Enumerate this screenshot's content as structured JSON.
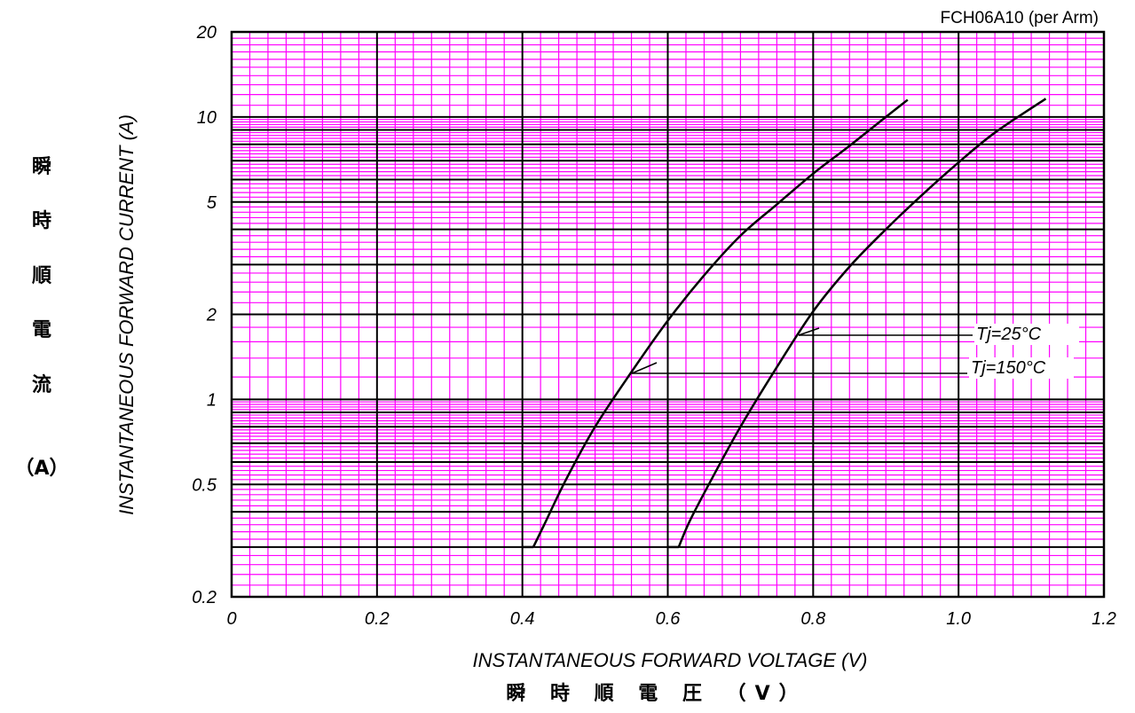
{
  "chart_data": {
    "type": "line",
    "title": "FCH06A10 (per Arm)",
    "xlabel": "INSTANTANEOUS FORWARD VOLTAGE (V)",
    "xlabel_cjk": "瞬 時 順 電 圧 （V）",
    "ylabel": "INSTANTANEOUS FORWARD CURRENT (A)",
    "ylabel_cjk": [
      "瞬",
      "時",
      "順",
      "電",
      "流",
      "（A）"
    ],
    "xlim": [
      0,
      1.2
    ],
    "ylim": [
      0.2,
      20
    ],
    "yscale": "log",
    "grid": true,
    "x_ticks": [
      "0",
      "0.2",
      "0.4",
      "0.6",
      "0.8",
      "1.0",
      "1.2"
    ],
    "y_ticks": [
      "20",
      "10",
      "5",
      "2",
      "1",
      "0.5",
      "0.2"
    ],
    "colors": {
      "minor_grid": "#ff00ff",
      "major_grid": "#000000",
      "curve": "#000000"
    },
    "series": [
      {
        "name": "Tj=150°C",
        "points": [
          [
            0.415,
            0.3
          ],
          [
            0.43,
            0.36
          ],
          [
            0.46,
            0.52
          ],
          [
            0.5,
            0.8
          ],
          [
            0.55,
            1.25
          ],
          [
            0.6,
            1.9
          ],
          [
            0.65,
            2.75
          ],
          [
            0.7,
            3.8
          ],
          [
            0.75,
            4.9
          ],
          [
            0.8,
            6.3
          ],
          [
            0.85,
            7.9
          ],
          [
            0.9,
            10.0
          ],
          [
            0.93,
            11.5
          ]
        ]
      },
      {
        "name": "Tj=25°C",
        "points": [
          [
            0.615,
            0.3
          ],
          [
            0.63,
            0.37
          ],
          [
            0.66,
            0.52
          ],
          [
            0.7,
            0.8
          ],
          [
            0.75,
            1.3
          ],
          [
            0.8,
            2.05
          ],
          [
            0.85,
            2.95
          ],
          [
            0.9,
            4.0
          ],
          [
            0.95,
            5.3
          ],
          [
            1.0,
            6.9
          ],
          [
            1.05,
            8.8
          ],
          [
            1.12,
            11.6
          ]
        ]
      }
    ]
  }
}
